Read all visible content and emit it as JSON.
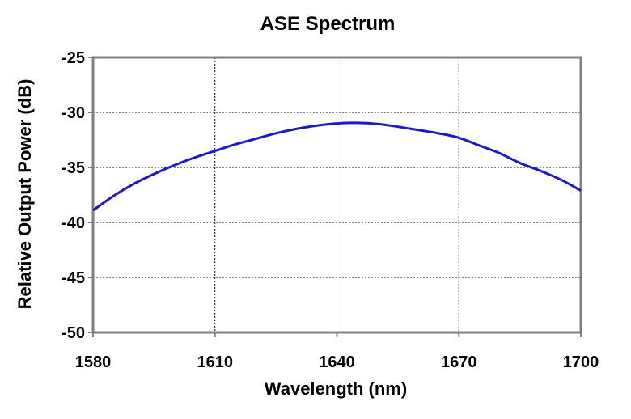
{
  "chart_data": {
    "type": "line",
    "title": "ASE Spectrum",
    "xlabel": "Wavelength (nm)",
    "ylabel": "Relative Output Power (dB)",
    "xlim": [
      1580,
      1700
    ],
    "ylim": [
      -50,
      -25
    ],
    "xticks": [
      1580,
      1610,
      1640,
      1670,
      1700
    ],
    "yticks": [
      -25,
      -30,
      -35,
      -40,
      -45,
      -50
    ],
    "xtick_labels": [
      "1580",
      "1610",
      "1640",
      "1670",
      "1700"
    ],
    "ytick_labels": [
      "-25",
      "-30",
      "-35",
      "-40",
      "-45",
      "-50"
    ],
    "grid": true,
    "legend": "none",
    "series": [
      {
        "color": "#1a1acc",
        "x": [
          1580,
          1585,
          1590,
          1595,
          1600,
          1605,
          1610,
          1615,
          1620,
          1625,
          1630,
          1635,
          1640,
          1645,
          1650,
          1655,
          1660,
          1665,
          1670,
          1675,
          1680,
          1685,
          1690,
          1695,
          1700
        ],
        "y": [
          -38.9,
          -37.6,
          -36.5,
          -35.6,
          -34.8,
          -34.1,
          -33.5,
          -32.9,
          -32.4,
          -31.9,
          -31.5,
          -31.2,
          -31.0,
          -30.95,
          -31.05,
          -31.3,
          -31.6,
          -31.9,
          -32.3,
          -33.0,
          -33.7,
          -34.6,
          -35.3,
          -36.1,
          -37.1
        ]
      }
    ]
  }
}
